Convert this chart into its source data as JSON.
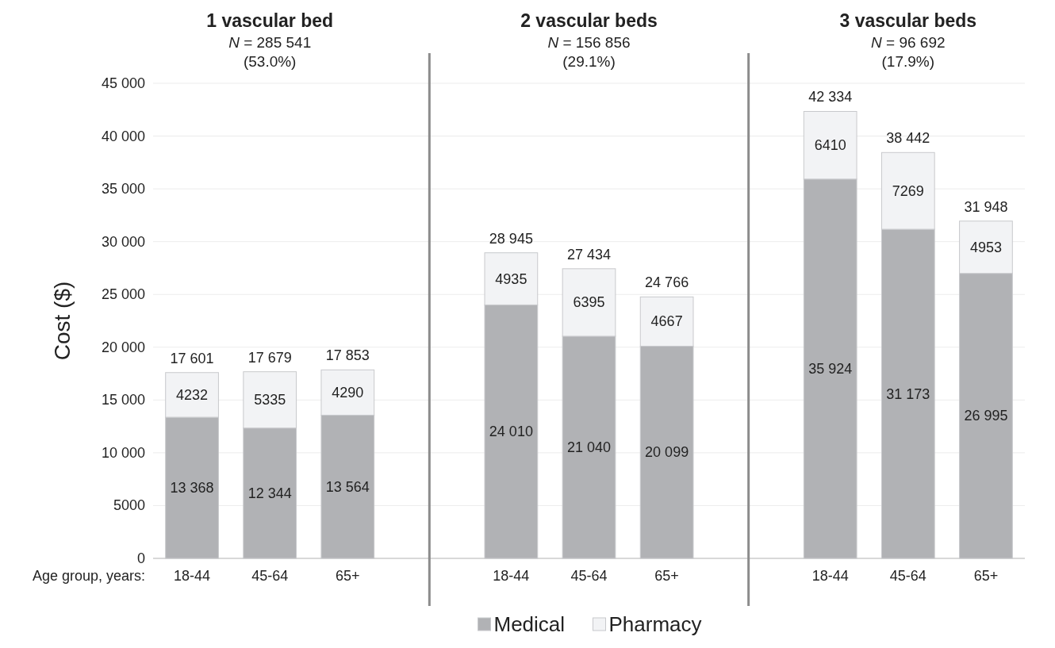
{
  "chart_data": {
    "type": "bar",
    "stacked": true,
    "ylabel": "Cost ($)",
    "xlabel": "Age group, years:",
    "categories": [
      "18-44",
      "45-64",
      "65+",
      "18-44",
      "45-64",
      "65+",
      "18-44",
      "45-64",
      "65+"
    ],
    "series": [
      {
        "name": "Medical",
        "color": "#b1b2b5",
        "values": [
          13368,
          12344,
          13564,
          24010,
          21040,
          20099,
          35924,
          31173,
          26995
        ],
        "value_labels": [
          "13 368",
          "12 344",
          "13 564",
          "24 010",
          "21 040",
          "20 099",
          "35 924",
          "31 173",
          "26 995"
        ]
      },
      {
        "name": "Pharmacy",
        "color": "#f2f3f5",
        "values": [
          4232,
          5335,
          4290,
          4935,
          6395,
          4667,
          6410,
          7269,
          4953
        ],
        "value_labels": [
          "4232",
          "5335",
          "4290",
          "4935",
          "6395",
          "4667",
          "6410",
          "7269",
          "4953"
        ]
      }
    ],
    "totals": [
      "17 601",
      "17 679",
      "17 853",
      "28 945",
      "27 434",
      "24 766",
      "42 334",
      "38 442",
      "31 948"
    ],
    "annotations": [
      "1 vascular bed",
      "N = 285 541",
      "(53.0%)",
      "2 vascular beds",
      "N = 156 856",
      "(29.1%)",
      "3 vascular beds",
      "N = 96 692",
      "(17.9%)"
    ],
    "ylim": [
      0,
      45000
    ],
    "yticks": [
      0,
      5000,
      {
        "value": 10000,
        "label": "10 000"
      },
      {
        "value": 15000,
        "label": "15 000"
      },
      {
        "value": 20000,
        "label": "20 000"
      },
      {
        "value": 25000,
        "label": "25 000"
      },
      {
        "value": 30000,
        "label": "30 000"
      },
      {
        "value": 35000,
        "label": "35 000"
      },
      {
        "value": 40000,
        "label": "40 000"
      },
      {
        "value": 45000,
        "label": "45 000"
      }
    ],
    "grid": "y",
    "legend": "bottom"
  }
}
